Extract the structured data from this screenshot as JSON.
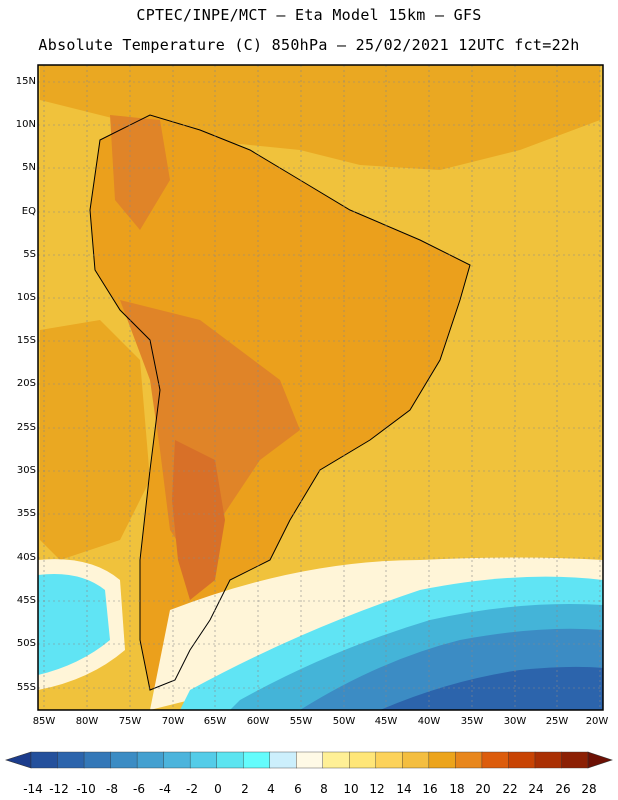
{
  "header": {
    "line1": "CPTEC/INPE/MCT –  Eta Model 15km – GFS",
    "line2": "Absolute Temperature (C) 850hPa – 25/02/2021 12UTC fct=22h"
  },
  "latitude_labels": [
    "15N",
    "10N",
    "5N",
    "EQ",
    "5S",
    "10S",
    "15S",
    "20S",
    "25S",
    "30S",
    "35S",
    "40S",
    "45S",
    "50S",
    "55S"
  ],
  "longitude_labels": [
    "85W",
    "80W",
    "75W",
    "70W",
    "65W",
    "60W",
    "55W",
    "50W",
    "45W",
    "40W",
    "35W",
    "30W",
    "25W",
    "20W"
  ],
  "colorbar": {
    "labels": [
      "-14",
      "-12",
      "-10",
      "-8",
      "-6",
      "-4",
      "-2",
      "0",
      "2",
      "4",
      "6",
      "8",
      "10",
      "12",
      "14",
      "16",
      "18",
      "20",
      "22",
      "24",
      "26",
      "28"
    ],
    "colors": [
      "#1c3c8c",
      "#24509c",
      "#2c64ac",
      "#3478b8",
      "#3c8cc4",
      "#44a0d0",
      "#4cb4dc",
      "#54cce8",
      "#5ce4f0",
      "#64fcfc",
      "#cceffc",
      "#fffae6",
      "#fff096",
      "#ffe678",
      "#fcd25a",
      "#f4be40",
      "#eca41c",
      "#e8861c",
      "#dc5c0c",
      "#c84404",
      "#aa3004",
      "#8c2004",
      "#6c1004"
    ]
  },
  "map_colors": {
    "ocean": "#f0c23c",
    "warm_sea": "#eaa822",
    "land": "#eba01c",
    "hot": "#e08428",
    "hottest": "#d87028",
    "pale": "#fff5d8",
    "cyan": "#60e4f4",
    "teal": "#44b4d8",
    "blue": "#3c8cc4",
    "deep": "#2c64ac"
  }
}
